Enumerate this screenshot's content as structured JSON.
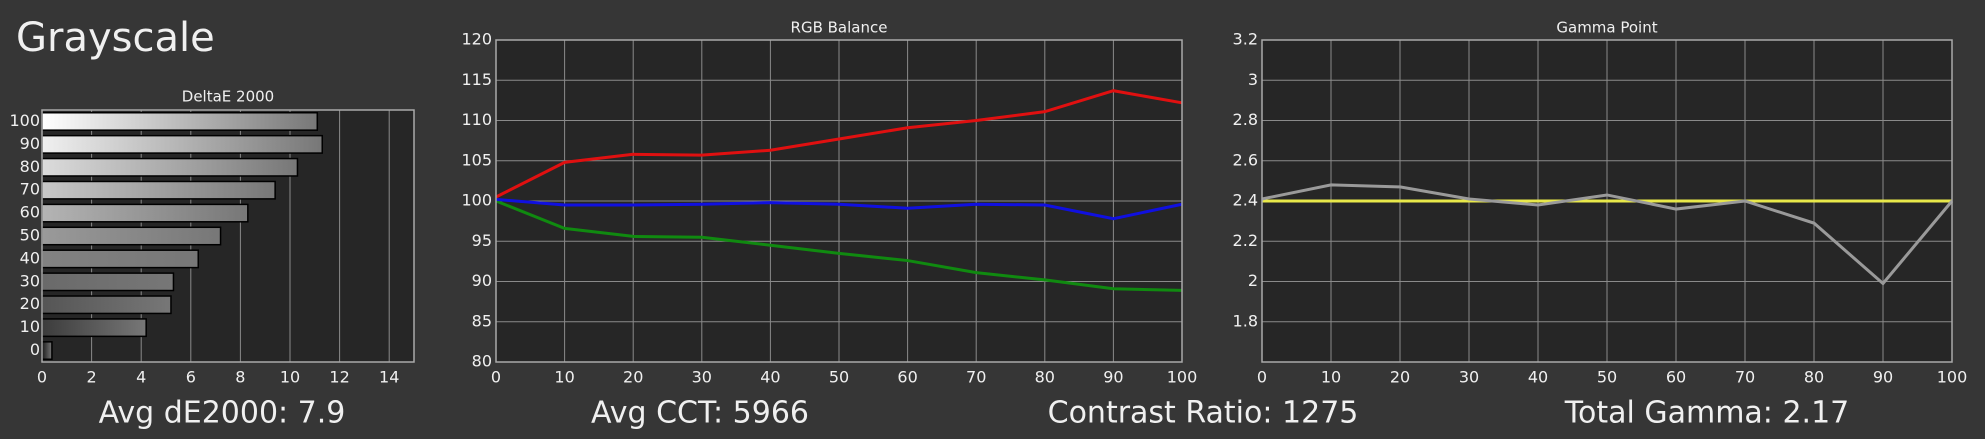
{
  "header": {
    "title": "Grayscale"
  },
  "chart_data": [
    {
      "type": "bar",
      "orientation": "horizontal",
      "title": "DeltaE 2000",
      "categories": [
        "100",
        "90",
        "80",
        "70",
        "60",
        "50",
        "40",
        "30",
        "20",
        "10",
        "0"
      ],
      "values": [
        11.1,
        11.3,
        10.3,
        9.4,
        8.3,
        7.2,
        6.3,
        5.3,
        5.2,
        4.2,
        0.4
      ],
      "colors": [
        "#ffffff",
        "#f0f0f0",
        "#dcdcdc",
        "#c8c8c8",
        "#b4b4b4",
        "#9a9a9a",
        "#828282",
        "#6a6a6a",
        "#555555",
        "#3c3c3c",
        "#1a1a1a"
      ],
      "xlim": [
        0,
        15
      ],
      "xticks": [
        0,
        2,
        4,
        6,
        8,
        10,
        12,
        14
      ],
      "grid": true
    },
    {
      "type": "line",
      "title": "RGB Balance",
      "x": [
        0,
        10,
        20,
        30,
        40,
        50,
        60,
        70,
        80,
        90,
        100
      ],
      "series": [
        {
          "color": "#e01010",
          "values": [
            100.5,
            104.8,
            105.8,
            105.7,
            106.3,
            107.7,
            109.1,
            110,
            111.1,
            113.7,
            112.2
          ]
        },
        {
          "color": "#108a10",
          "values": [
            100,
            96.6,
            95.6,
            95.5,
            94.5,
            93.5,
            92.6,
            91.1,
            90.2,
            89.1,
            88.9
          ]
        },
        {
          "color": "#1010e0",
          "values": [
            100.2,
            99.5,
            99.5,
            99.6,
            99.8,
            99.6,
            99.1,
            99.6,
            99.5,
            97.8,
            99.6
          ]
        }
      ],
      "xlim": [
        0,
        100
      ],
      "xticks": [
        0,
        10,
        20,
        30,
        40,
        50,
        60,
        70,
        80,
        90,
        100
      ],
      "ylim": [
        80,
        120
      ],
      "yticks": [
        80,
        85,
        90,
        95,
        100,
        105,
        110,
        115,
        120
      ],
      "grid": true
    },
    {
      "type": "line",
      "title": "Gamma Point",
      "x": [
        0,
        10,
        20,
        30,
        40,
        50,
        60,
        70,
        80,
        90,
        100
      ],
      "series": [
        {
          "color": "#e8e84a",
          "values": [
            2.4,
            2.4,
            2.4,
            2.4,
            2.4,
            2.4,
            2.4,
            2.4,
            2.4,
            2.4,
            2.4
          ]
        },
        {
          "color": "#9a9a9a",
          "values": [
            2.41,
            2.48,
            2.47,
            2.41,
            2.38,
            2.43,
            2.36,
            2.4,
            2.29,
            1.99,
            2.4
          ]
        }
      ],
      "xlim": [
        0,
        100
      ],
      "xticks": [
        0,
        10,
        20,
        30,
        40,
        50,
        60,
        70,
        80,
        90,
        100
      ],
      "ylim": [
        1.6,
        3.2
      ],
      "yticks": [
        1.8,
        2,
        2.2,
        2.4,
        2.6,
        2.8,
        3,
        3.2
      ],
      "grid": true
    }
  ],
  "stats": [
    "Avg dE2000: 7.9",
    "Avg CCT: 5966",
    "Contrast Ratio: 1275",
    "Total Gamma: 2.17"
  ]
}
